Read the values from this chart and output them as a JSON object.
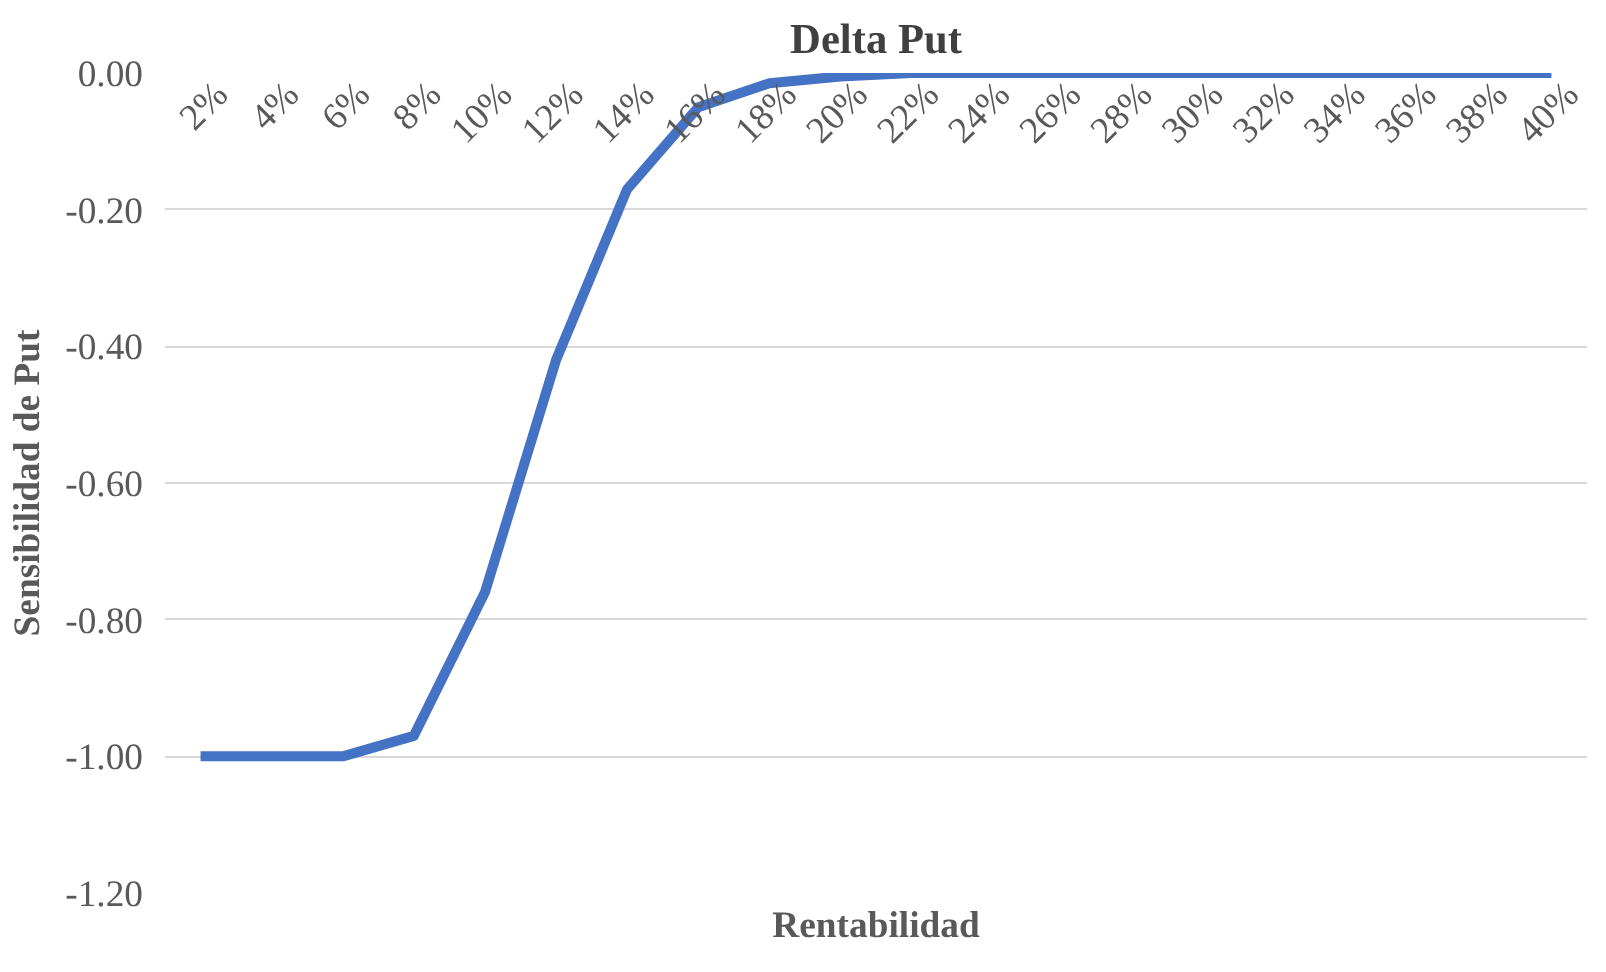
{
  "chart_data": {
    "type": "line",
    "title": "Delta Put",
    "xlabel": "Rentabilidad",
    "ylabel": "Sensibilidad de Put",
    "categories": [
      "2%",
      "4%",
      "6%",
      "8%",
      "10%",
      "12%",
      "14%",
      "16%",
      "18%",
      "20%",
      "22%",
      "24%",
      "26%",
      "28%",
      "30%",
      "32%",
      "34%",
      "36%",
      "38%",
      "40%"
    ],
    "series": [
      {
        "color": "#4472c4",
        "values": [
          -1.0,
          -1.0,
          -1.0,
          -0.97,
          -0.76,
          -0.42,
          -0.17,
          -0.05,
          -0.015,
          -0.005,
          0,
          0,
          0,
          0,
          0,
          0,
          0,
          0,
          0,
          0
        ]
      }
    ],
    "ylim": [
      -1.2,
      0
    ],
    "yticks": [
      {
        "value": 0,
        "label": "0.00"
      },
      {
        "value": -0.2,
        "label": "-0.20"
      },
      {
        "value": -0.4,
        "label": "-0.40"
      },
      {
        "value": -0.6,
        "label": "-0.60"
      },
      {
        "value": -0.8,
        "label": "-0.80"
      },
      {
        "value": -1.0,
        "label": "-1.00"
      },
      {
        "value": -1.2,
        "label": "-1.20"
      }
    ],
    "grid": "y",
    "marker": "none",
    "line_style": "solid"
  }
}
